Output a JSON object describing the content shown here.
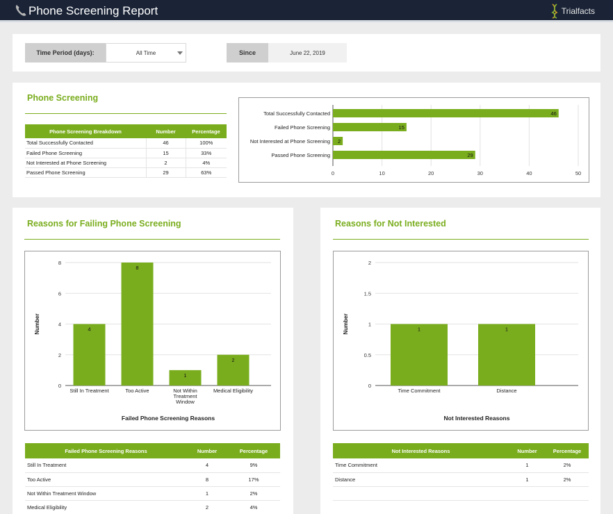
{
  "header": {
    "title": "Phone Screening Report",
    "logo_text": "Trialfacts"
  },
  "filters": {
    "time_period_label": "Time Period (days):",
    "time_period_value": "All Time",
    "since_label": "Since",
    "since_value": "June 22, 2019"
  },
  "screening": {
    "title": "Phone Screening",
    "table": {
      "headers": [
        "Phone Screening Breakdown",
        "Number",
        "Percentage"
      ],
      "rows": [
        {
          "name": "Total Successfully Contacted",
          "number": "46",
          "pct": "100%"
        },
        {
          "name": "Failed Phone Screening",
          "number": "15",
          "pct": "33%"
        },
        {
          "name": "Not Interested at Phone Screening",
          "number": "2",
          "pct": "4%"
        },
        {
          "name": "Passed Phone Screening",
          "number": "29",
          "pct": "63%"
        }
      ]
    }
  },
  "failing": {
    "title": "Reasons for Failing Phone Screening",
    "table": {
      "headers": [
        "Failed Phone Screening Reasons",
        "Number",
        "Percentage"
      ],
      "rows": [
        {
          "name": "Still In Treatment",
          "number": "4",
          "pct": "9%"
        },
        {
          "name": "Too Active",
          "number": "8",
          "pct": "17%"
        },
        {
          "name": "Not Within Treatment Window",
          "number": "1",
          "pct": "2%"
        },
        {
          "name": "Medical Eligibility",
          "number": "2",
          "pct": "4%"
        }
      ]
    }
  },
  "notint": {
    "title": "Reasons for Not Interested",
    "table": {
      "headers": [
        "Not Interested Reasons",
        "Number",
        "Percentage"
      ],
      "rows": [
        {
          "name": "Time Commitment",
          "number": "1",
          "pct": "2%"
        },
        {
          "name": "Distance",
          "number": "1",
          "pct": "2%"
        }
      ]
    }
  },
  "colors": {
    "accent": "#7aad1e",
    "header_bg": "#1b2437"
  },
  "chart_data": [
    {
      "type": "bar",
      "orientation": "horizontal",
      "categories": [
        "Total Successfully Contacted",
        "Failed Phone Screening",
        "Not Interested at Phone Screening",
        "Passed Phone Screening"
      ],
      "values": [
        46,
        15,
        2,
        29
      ],
      "xlim": [
        0,
        50
      ],
      "xticks": [
        0,
        10,
        20,
        30,
        40,
        50
      ],
      "grid": true
    },
    {
      "type": "bar",
      "categories": [
        "Still In Treatment",
        "Too Active",
        "Not Within Treatment Window",
        "Medical Eligibility"
      ],
      "category_lines": [
        [
          "Still In Treatment"
        ],
        [
          "Too Active"
        ],
        [
          "Not Within",
          "Treatment",
          "Window"
        ],
        [
          "Medical Eligibility"
        ]
      ],
      "values": [
        4,
        8,
        1,
        2
      ],
      "ylim": [
        0,
        8
      ],
      "yticks": [
        0,
        2,
        4,
        6,
        8
      ],
      "ylabel": "Number",
      "xlabel": "Failed Phone Screening Reasons",
      "grid": true
    },
    {
      "type": "bar",
      "categories": [
        "Time Commitment",
        "Distance"
      ],
      "category_lines": [
        [
          "Time Commitment"
        ],
        [
          "Distance"
        ]
      ],
      "values": [
        1,
        1
      ],
      "ylim": [
        0,
        2
      ],
      "yticks": [
        0,
        0.5,
        1,
        1.5,
        2
      ],
      "ylabel": "Number",
      "xlabel": "Not Interested Reasons",
      "grid": true
    }
  ]
}
